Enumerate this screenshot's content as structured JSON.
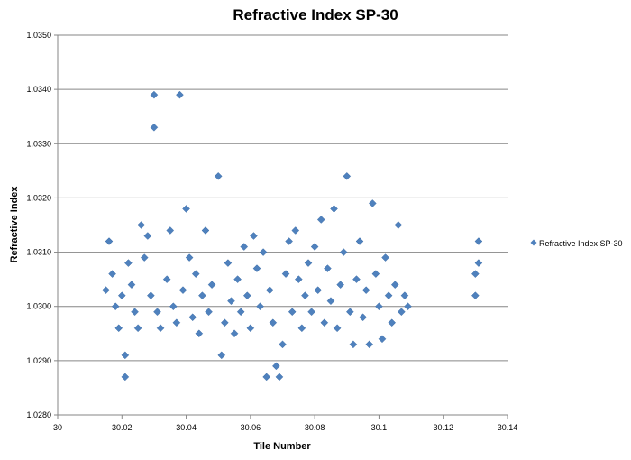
{
  "chart_data": {
    "type": "scatter",
    "title": "Refractive Index SP-30",
    "xlabel": "Tile Number",
    "ylabel": "Refractive Index",
    "xlim": [
      30,
      30.14
    ],
    "ylim": [
      1.028,
      1.035
    ],
    "x_ticks": [
      "30",
      "30.02",
      "30.04",
      "30.06",
      "30.08",
      "30.1",
      "30.12",
      "30.14"
    ],
    "y_ticks": [
      "1.0280",
      "1.0290",
      "1.0300",
      "1.0310",
      "1.0320",
      "1.0330",
      "1.0340",
      "1.0350"
    ],
    "grid": "horizontal",
    "legend_position": "right",
    "marker": "diamond",
    "color": "#4f81bd",
    "series": [
      {
        "name": "Refractive Index SP-30",
        "points": [
          [
            30.015,
            1.0303
          ],
          [
            30.016,
            1.0312
          ],
          [
            30.017,
            1.0306
          ],
          [
            30.018,
            1.03
          ],
          [
            30.019,
            1.0296
          ],
          [
            30.02,
            1.0302
          ],
          [
            30.021,
            1.0291
          ],
          [
            30.021,
            1.0287
          ],
          [
            30.022,
            1.0308
          ],
          [
            30.023,
            1.0304
          ],
          [
            30.024,
            1.0299
          ],
          [
            30.025,
            1.0296
          ],
          [
            30.026,
            1.0315
          ],
          [
            30.027,
            1.0309
          ],
          [
            30.028,
            1.0313
          ],
          [
            30.029,
            1.0302
          ],
          [
            30.03,
            1.0333
          ],
          [
            30.03,
            1.0339
          ],
          [
            30.031,
            1.0299
          ],
          [
            30.032,
            1.0296
          ],
          [
            30.034,
            1.0305
          ],
          [
            30.035,
            1.0314
          ],
          [
            30.036,
            1.03
          ],
          [
            30.037,
            1.0297
          ],
          [
            30.038,
            1.0339
          ],
          [
            30.039,
            1.0303
          ],
          [
            30.04,
            1.0318
          ],
          [
            30.041,
            1.0309
          ],
          [
            30.042,
            1.0298
          ],
          [
            30.043,
            1.0306
          ],
          [
            30.044,
            1.0295
          ],
          [
            30.045,
            1.0302
          ],
          [
            30.046,
            1.0314
          ],
          [
            30.047,
            1.0299
          ],
          [
            30.048,
            1.0304
          ],
          [
            30.05,
            1.0324
          ],
          [
            30.051,
            1.0291
          ],
          [
            30.052,
            1.0297
          ],
          [
            30.053,
            1.0308
          ],
          [
            30.054,
            1.0301
          ],
          [
            30.055,
            1.0295
          ],
          [
            30.056,
            1.0305
          ],
          [
            30.057,
            1.0299
          ],
          [
            30.058,
            1.0311
          ],
          [
            30.059,
            1.0302
          ],
          [
            30.06,
            1.0296
          ],
          [
            30.061,
            1.0313
          ],
          [
            30.062,
            1.0307
          ],
          [
            30.063,
            1.03
          ],
          [
            30.064,
            1.031
          ],
          [
            30.065,
            1.0287
          ],
          [
            30.066,
            1.0303
          ],
          [
            30.067,
            1.0297
          ],
          [
            30.068,
            1.0289
          ],
          [
            30.069,
            1.0287
          ],
          [
            30.07,
            1.0293
          ],
          [
            30.071,
            1.0306
          ],
          [
            30.072,
            1.0312
          ],
          [
            30.073,
            1.0299
          ],
          [
            30.074,
            1.0314
          ],
          [
            30.075,
            1.0305
          ],
          [
            30.076,
            1.0296
          ],
          [
            30.077,
            1.0302
          ],
          [
            30.078,
            1.0308
          ],
          [
            30.079,
            1.0299
          ],
          [
            30.08,
            1.0311
          ],
          [
            30.081,
            1.0303
          ],
          [
            30.082,
            1.0316
          ],
          [
            30.083,
            1.0297
          ],
          [
            30.084,
            1.0307
          ],
          [
            30.085,
            1.0301
          ],
          [
            30.086,
            1.0318
          ],
          [
            30.087,
            1.0296
          ],
          [
            30.088,
            1.0304
          ],
          [
            30.089,
            1.031
          ],
          [
            30.09,
            1.0324
          ],
          [
            30.091,
            1.0299
          ],
          [
            30.092,
            1.0293
          ],
          [
            30.093,
            1.0305
          ],
          [
            30.094,
            1.0312
          ],
          [
            30.095,
            1.0298
          ],
          [
            30.096,
            1.0303
          ],
          [
            30.097,
            1.0293
          ],
          [
            30.098,
            1.0319
          ],
          [
            30.099,
            1.0306
          ],
          [
            30.1,
            1.03
          ],
          [
            30.101,
            1.0294
          ],
          [
            30.102,
            1.0309
          ],
          [
            30.103,
            1.0302
          ],
          [
            30.104,
            1.0297
          ],
          [
            30.105,
            1.0304
          ],
          [
            30.106,
            1.0315
          ],
          [
            30.107,
            1.0299
          ],
          [
            30.108,
            1.0302
          ],
          [
            30.109,
            1.03
          ],
          [
            30.13,
            1.0302
          ],
          [
            30.13,
            1.0306
          ],
          [
            30.131,
            1.0312
          ],
          [
            30.131,
            1.0308
          ]
        ]
      }
    ]
  }
}
